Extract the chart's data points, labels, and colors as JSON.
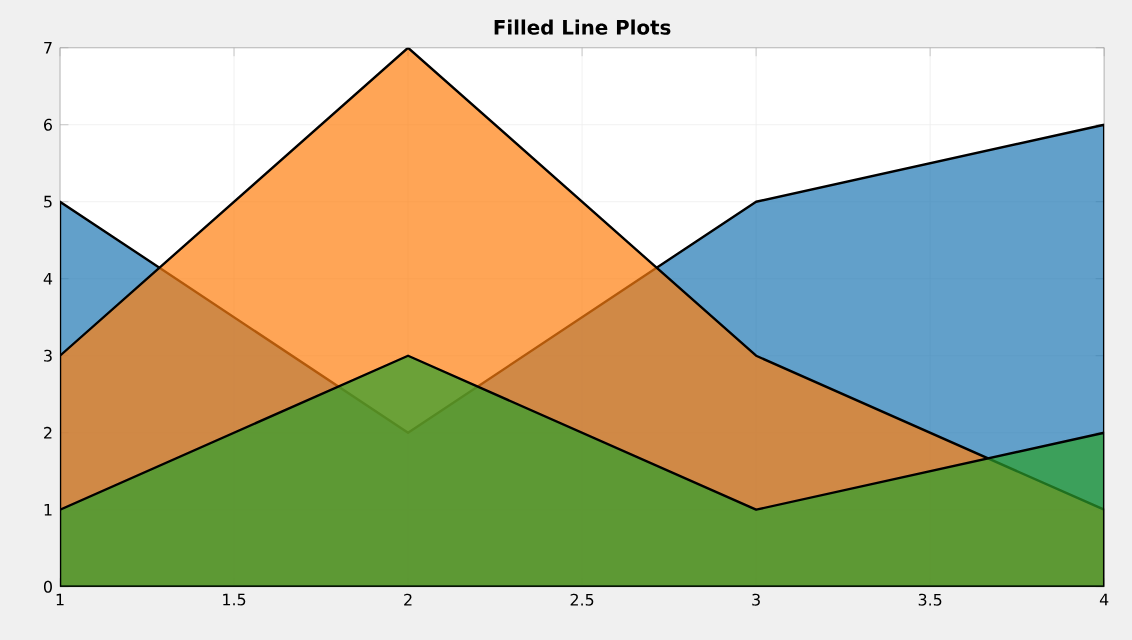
{
  "chart_data": {
    "type": "area",
    "title": "Filled Line Plots",
    "x": [
      1,
      2,
      3,
      4
    ],
    "series": [
      {
        "color": "#1f77b4",
        "values": [
          5,
          2,
          5,
          6
        ]
      },
      {
        "color": "#ff7f0e",
        "values": [
          3,
          7,
          3,
          1
        ]
      },
      {
        "color": "#2ca02c",
        "values": [
          1,
          3,
          1,
          2
        ]
      }
    ],
    "xlim": [
      1,
      4
    ],
    "xticks": [
      1,
      1.5,
      2,
      2.5,
      3,
      3.5,
      4
    ],
    "ylim": [
      0,
      7
    ],
    "yticks": [
      0,
      1,
      2,
      3,
      4,
      5,
      6,
      7
    ],
    "grid": true
  }
}
